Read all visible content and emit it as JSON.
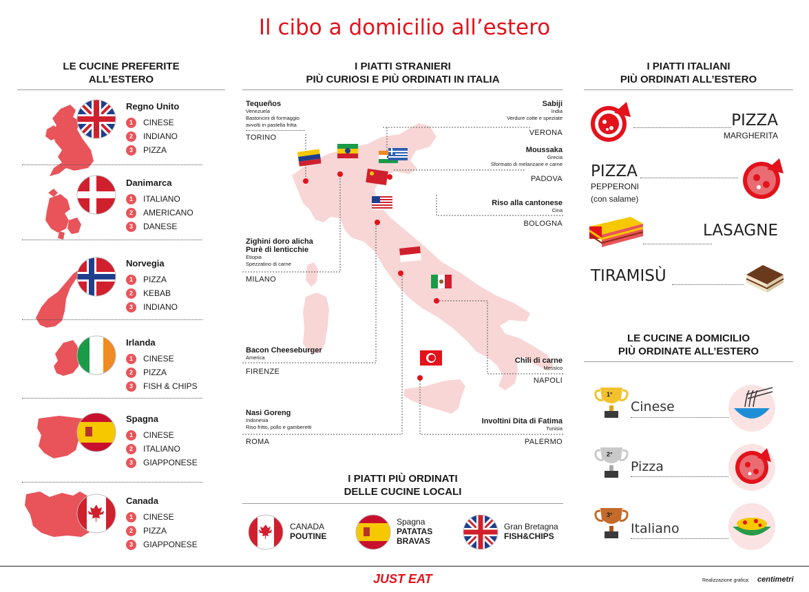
{
  "title": "Il cibo a domicilio all’estero",
  "left": {
    "heading_1": "LE CUCINE PREFERITE",
    "heading_2": "ALL’ESTERO",
    "countries": [
      {
        "name": "Regno Unito",
        "ranks": [
          "CINESE",
          "INDIANO",
          "PIZZA"
        ]
      },
      {
        "name": "Danimarca",
        "ranks": [
          "ITALIANO",
          "AMERICANO",
          "DANESE"
        ]
      },
      {
        "name": "Norvegia",
        "ranks": [
          "PIZZA",
          "KEBAB",
          "INDIANO"
        ]
      },
      {
        "name": "Irlanda",
        "ranks": [
          "CINESE",
          "PIZZA",
          "FISH & CHIPS"
        ]
      },
      {
        "name": "Spagna",
        "ranks": [
          "CINESE",
          "ITALIANO",
          "GIAPPONESE"
        ]
      },
      {
        "name": "Canada",
        "ranks": [
          "CINESE",
          "PIZZA",
          "GIAPPONESE"
        ]
      }
    ],
    "rank_numbers": [
      "1",
      "2",
      "3"
    ]
  },
  "middle": {
    "heading_1": "I PIATTI STRANIERI",
    "heading_2": "PIÙ CURIOSI E PIÙ ORDINATI IN ITALIA",
    "dishes": [
      {
        "name": "Tequeños",
        "origin": "Venezuela",
        "desc_1": "Bastoncini di formaggio",
        "desc_2": "avvolti in pastella fritta",
        "city": "TORINO"
      },
      {
        "name": "Sabiji",
        "origin": "India",
        "desc_1": "Verdure cotte e speziate",
        "city": "VERONA"
      },
      {
        "name": "Moussaka",
        "origin": "Grecia",
        "desc_1": "Sformato di melanzane e carne",
        "city": "PADOVA"
      },
      {
        "name": "Riso alla cantonese",
        "origin": "Cina",
        "city": "BOLOGNA"
      },
      {
        "name": "Zighini doro alicha",
        "name_2": "Purè di lenticchie",
        "origin": "Etiopia",
        "desc_1": "Spezzatino di carne",
        "city": "MILANO"
      },
      {
        "name": "Bacon Cheeseburger",
        "origin": "America",
        "city": "FIRENZE"
      },
      {
        "name": "Chili di carne",
        "origin": "Messico",
        "city": "NAPOLI"
      },
      {
        "name": "Nasi Goreng",
        "origin": "Indonesia",
        "desc_1": "Riso fritto, pollo e gamberetti",
        "city": "ROMA"
      },
      {
        "name": "Involtini Dita di Fatima",
        "origin": "Tunisia",
        "city": "PALERMO"
      }
    ],
    "bottom_heading_1": "I PIATTI PIÙ ORDINATI",
    "bottom_heading_2": "DELLE CUCINE LOCALI",
    "local": [
      {
        "country": "CANADA",
        "dish": "POUTINE"
      },
      {
        "country": "Spagna",
        "dish_1": "PATATAS",
        "dish_2": "BRAVAS"
      },
      {
        "country": "Gran Bretagna",
        "dish": "FISH&CHIPS"
      }
    ]
  },
  "right": {
    "heading_1": "I PIATTI ITALIANI",
    "heading_2": "PIÙ ORDINATI ALL’ESTERO",
    "dishes": [
      {
        "big": "PIZZA",
        "small": "MARGHERITA"
      },
      {
        "big": "PIZZA",
        "small": "PEPPERONI",
        "small_2": "(con salame)"
      },
      {
        "big": "LASAGNE"
      },
      {
        "big": "TIRAMISÙ"
      }
    ],
    "heading2_1": "LE CUCINE A DOMICILIO",
    "heading2_2": "PIÙ ORDINATE ALL’ESTERO",
    "podium": [
      {
        "place": "1°",
        "name": "Cinese"
      },
      {
        "place": "2°",
        "name": "Pizza"
      },
      {
        "place": "3°",
        "name": "Italiano"
      }
    ]
  },
  "footer": {
    "brand": "JUST EAT",
    "credit_label": "Realizzazione grafica:",
    "credit_brand": "centimetri"
  },
  "colors": {
    "accent": "#e3121b",
    "map": "#f8d6d6",
    "silhouette": "#e8545a"
  }
}
